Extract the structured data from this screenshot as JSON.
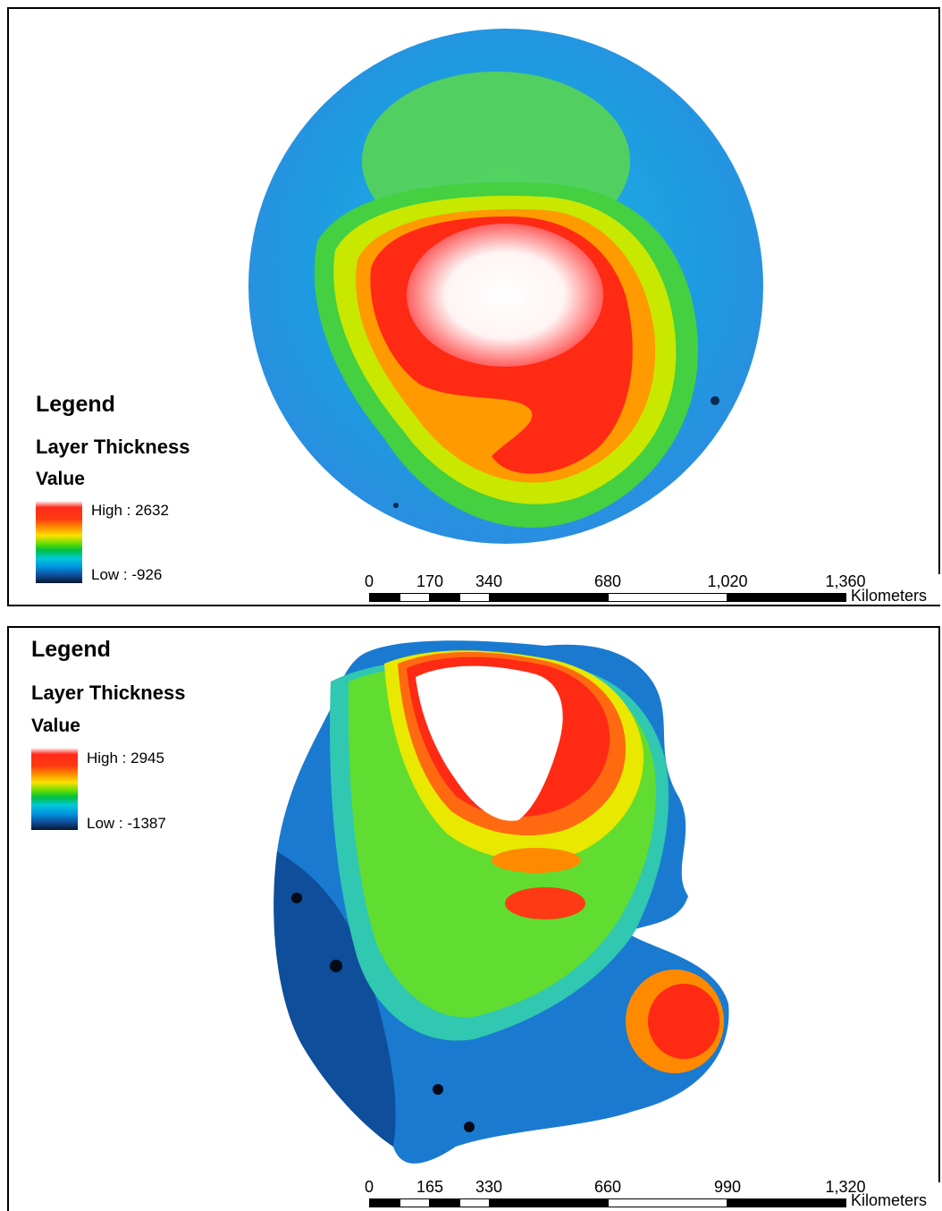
{
  "maps": [
    {
      "legend": {
        "title": "Legend",
        "layer": "Layer Thickness",
        "field": "Value",
        "high_label": "High : 2632",
        "low_label": "Low : -926"
      },
      "scale": {
        "ticks": [
          "0",
          "170",
          "340",
          "680",
          "1,020",
          "1,360"
        ],
        "unit": "Kilometers"
      }
    },
    {
      "legend": {
        "title": "Legend",
        "layer": "Layer Thickness",
        "field": "Value",
        "high_label": "High : 2945",
        "low_label": "Low : -1387"
      },
      "scale": {
        "ticks": [
          "0",
          "165",
          "330",
          "660",
          "990",
          "1,320"
        ],
        "unit": "Kilometers"
      }
    }
  ],
  "colors": {
    "low": "#0a1a3a",
    "blue": "#1e90e0",
    "cyan": "#20b0e8",
    "green": "#22cc22",
    "yellow": "#ffe000",
    "orange": "#ff8800",
    "red": "#ff2a10",
    "high": "#ffffff"
  }
}
